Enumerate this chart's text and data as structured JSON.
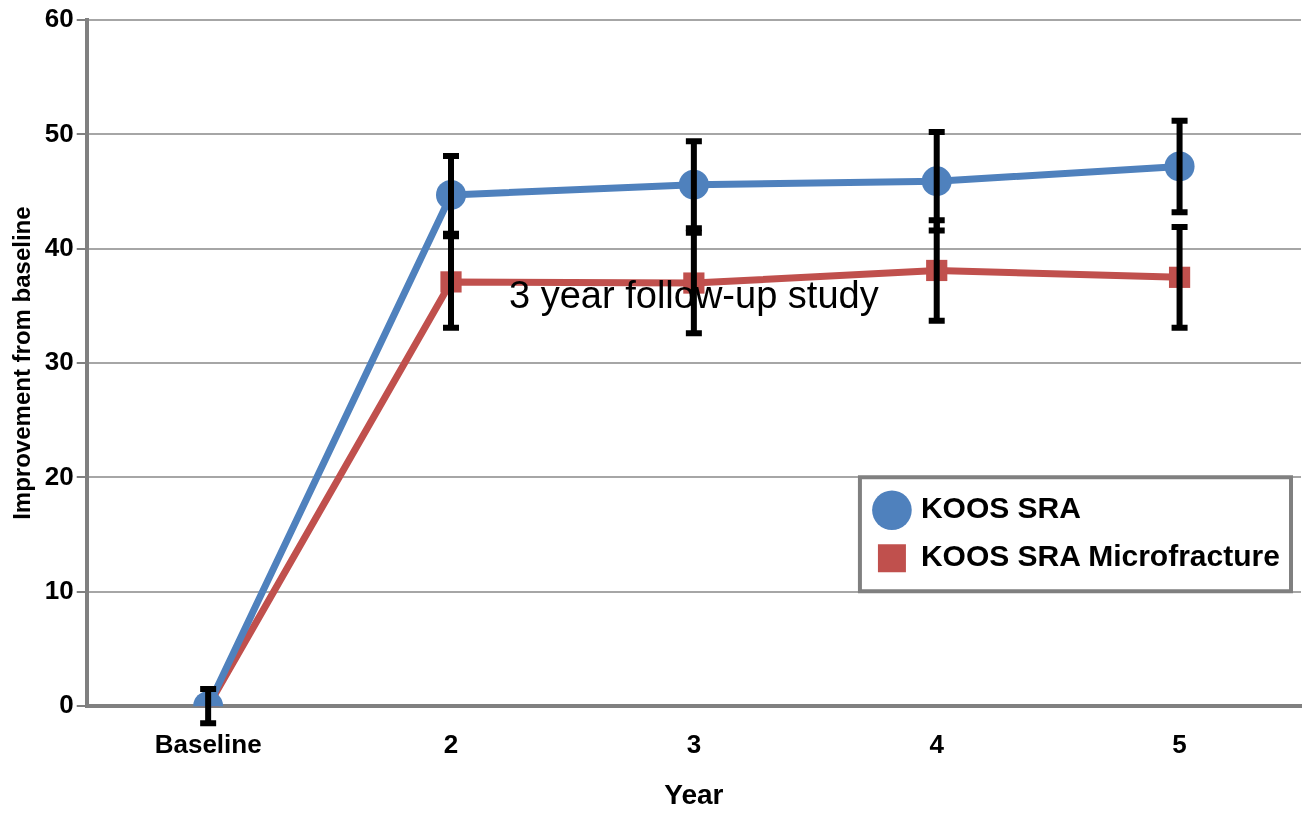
{
  "chart_data": {
    "type": "line",
    "xlabel": "Year",
    "ylabel": "Improvement from baseline",
    "categories": [
      "Baseline",
      "2",
      "3",
      "4",
      "5"
    ],
    "ylim": [
      0,
      60
    ],
    "yticks": [
      0,
      10,
      20,
      30,
      40,
      50,
      60
    ],
    "grid": "y",
    "legend": "bottom right",
    "annotations": [
      {
        "text": "3 year follow-up study",
        "x": "3",
        "y": 35.7
      }
    ],
    "series": [
      {
        "name": "KOOS SRA",
        "color": "#4f81bd",
        "marker": "circle",
        "values": [
          0,
          44.7,
          45.6,
          45.9,
          47.2
        ],
        "errors": [
          1.5,
          3.4,
          3.8,
          4.3,
          4.0
        ]
      },
      {
        "name": "KOOS SRA Microfracture",
        "color": "#c0504d",
        "marker": "square",
        "values": [
          0,
          37.1,
          37.0,
          38.1,
          37.5
        ],
        "errors": [
          null,
          4.0,
          4.4,
          4.4,
          4.4
        ]
      }
    ]
  }
}
